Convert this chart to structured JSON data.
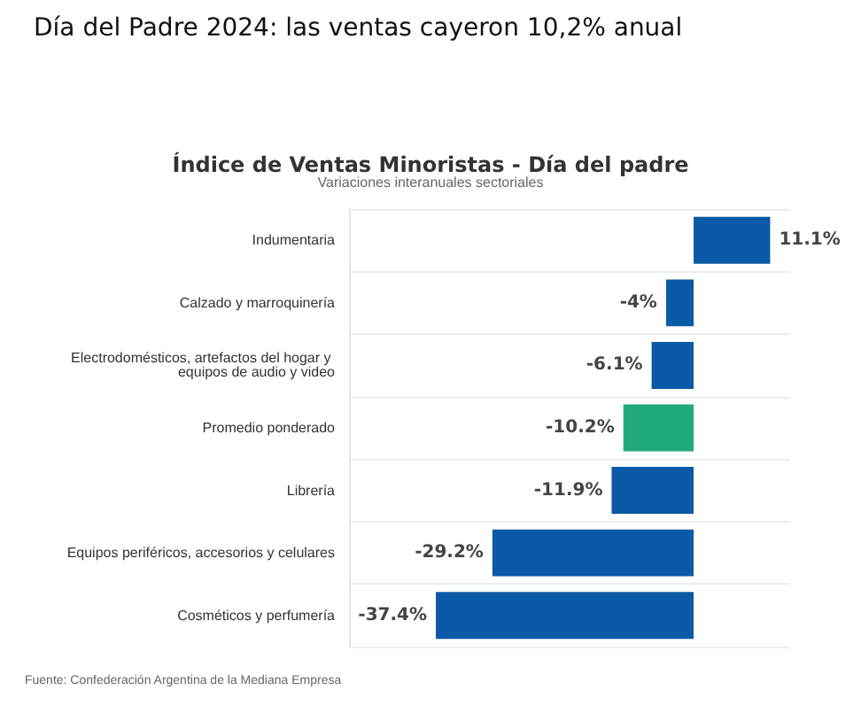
{
  "chart_data": {
    "type": "bar",
    "orientation": "horizontal",
    "title": "Día del Padre 2024: las ventas cayeron 10,2% anual",
    "subtitle": "Índice de Ventas Minoristas - Día del padre",
    "annotations": [
      "Variaciones interanuales sectoriales",
      "Fuente: Confederación Argentina de la Mediana Empresa"
    ],
    "categories": [
      "Indumentaria",
      "Calzado y marroquinería",
      "Electrodomésticos, artefactos del hogar y equipos de audio y video",
      "Promedio ponderado",
      "Librería",
      "Equipos periféricos, accesorios y celulares",
      "Cosméticos y perfumería"
    ],
    "values": [
      11.1,
      -4,
      -6.1,
      -10.2,
      -11.9,
      -29.2,
      -37.4
    ],
    "value_labels": [
      "11.1%",
      "-4%",
      "-6.1%",
      "-10.2%",
      "-11.9%",
      "-29.2%",
      "-37.4%"
    ],
    "colors": [
      "#0b5aa7",
      "#0b5aa7",
      "#0b5aa7",
      "#22a97b",
      "#0b5aa7",
      "#0b5aa7",
      "#0b5aa7"
    ],
    "grid": "y"
  }
}
